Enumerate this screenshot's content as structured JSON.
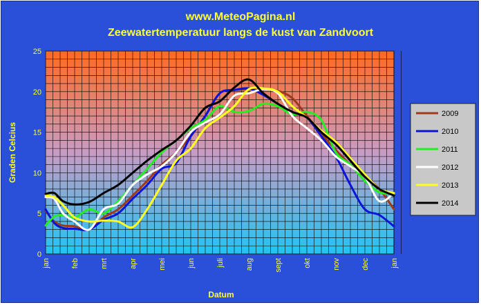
{
  "title": "www.MeteoPagina.nl",
  "subtitle": "Zeewatertemperatuur langs de kust van Zandvoort",
  "chart_data": {
    "type": "line",
    "title": "www.MeteoPagina.nl",
    "subtitle": "Zeewatertemperatuur langs de kust van Zandvoort",
    "xlabel": "Datum",
    "ylabel": "Graden Celcius",
    "ylim": [
      0,
      25
    ],
    "yticks": [
      0,
      5,
      10,
      15,
      20,
      25
    ],
    "xlim": [
      0,
      12
    ],
    "xticks": [
      "jan",
      "feb",
      "mrt",
      "apr",
      "mei",
      "jun",
      "juli",
      "aug",
      "sept",
      "okt",
      "nov",
      "dec",
      "jan"
    ],
    "grid": true,
    "legend_position": "right",
    "series": [
      {
        "name": "2009",
        "color": "#a0381a",
        "x": [
          0,
          0.3,
          0.6,
          1,
          1.5,
          2,
          2.5,
          3,
          3.5,
          4,
          4.5,
          5,
          5.5,
          6,
          6.5,
          7,
          7.5,
          8,
          8.5,
          9,
          9.5,
          10,
          10.5,
          11,
          11.5,
          12
        ],
        "y": [
          5.3,
          4.0,
          3.5,
          3.4,
          3.0,
          4.5,
          5.5,
          7.2,
          9.0,
          11.0,
          12.5,
          14.5,
          17.0,
          19.8,
          20.2,
          20.3,
          20.4,
          20.1,
          19.2,
          17.0,
          14.8,
          12.8,
          11.0,
          9.5,
          8.0,
          5.5
        ]
      },
      {
        "name": "2010",
        "color": "#0a14d8",
        "x": [
          0,
          0.3,
          0.6,
          1,
          1.5,
          2,
          2.5,
          3,
          3.5,
          4,
          4.5,
          5,
          5.5,
          6,
          6.5,
          7,
          7.5,
          8,
          8.5,
          9,
          9.5,
          10,
          10.5,
          11,
          11.5,
          12
        ],
        "y": [
          5.5,
          3.8,
          3.2,
          3.1,
          3.0,
          4.2,
          5.0,
          6.8,
          8.5,
          10.5,
          11.2,
          14.5,
          17.0,
          19.8,
          20.2,
          20.4,
          19.6,
          18.5,
          17.5,
          16.8,
          14.5,
          12.0,
          8.5,
          5.5,
          4.8,
          3.4
        ]
      },
      {
        "name": "2011",
        "color": "#22ee22",
        "x": [
          0,
          0.3,
          0.6,
          1,
          1.5,
          2,
          2.5,
          3,
          3.5,
          4,
          4.5,
          5,
          5.5,
          6,
          6.5,
          7,
          7.5,
          8,
          8.5,
          9,
          9.5,
          10,
          10.5,
          11,
          11.5,
          12
        ],
        "y": [
          3.5,
          4.6,
          4.8,
          4.5,
          5.5,
          5.0,
          6.5,
          8.5,
          10.5,
          12.5,
          14.0,
          15.5,
          16.5,
          18.2,
          17.5,
          17.6,
          18.5,
          18.2,
          17.2,
          17.5,
          16.5,
          12.5,
          11.0,
          9.0,
          7.6,
          7.4
        ]
      },
      {
        "name": "2012",
        "color": "#ffffff",
        "x": [
          0,
          0.3,
          0.6,
          1,
          1.5,
          2,
          2.5,
          3,
          3.5,
          4,
          4.5,
          5,
          5.5,
          6,
          6.5,
          7,
          7.5,
          8,
          8.5,
          9,
          9.5,
          10,
          10.5,
          11,
          11.5,
          12
        ],
        "y": [
          7.0,
          6.8,
          5.0,
          4.0,
          3.0,
          5.5,
          6.2,
          8.5,
          9.8,
          10.8,
          12.5,
          15.0,
          16.2,
          17.2,
          19.5,
          19.8,
          20.3,
          19.8,
          17.0,
          15.5,
          14.0,
          12.0,
          10.8,
          9.5,
          6.5,
          7.5
        ]
      },
      {
        "name": "2013",
        "color": "#ffff22",
        "x": [
          0,
          0.3,
          0.6,
          1,
          1.5,
          2,
          2.5,
          3,
          3.5,
          4,
          4.5,
          5,
          5.5,
          6,
          6.5,
          7,
          7.5,
          8,
          8.5,
          9,
          9.5,
          10,
          10.5,
          11,
          11.5,
          12
        ],
        "y": [
          7.2,
          7.0,
          6.0,
          4.5,
          4.0,
          4.1,
          4.0,
          3.3,
          5.5,
          8.5,
          11.5,
          13.0,
          15.5,
          16.8,
          18.2,
          20.3,
          20.4,
          20.0,
          18.2,
          16.8,
          15.2,
          13.8,
          11.8,
          9.8,
          8.0,
          7.5
        ]
      },
      {
        "name": "2014",
        "color": "#000000",
        "x": [
          0,
          0.3,
          0.6,
          1,
          1.5,
          2,
          2.5,
          3,
          3.5,
          4,
          4.5,
          5,
          5.5,
          6,
          6.5,
          7,
          7.5,
          8,
          8.5,
          9,
          9.5,
          10,
          10.5,
          11,
          11.5,
          12
        ],
        "y": [
          7.4,
          7.5,
          6.5,
          6.1,
          6.4,
          7.5,
          8.5,
          10.0,
          11.5,
          12.8,
          14.0,
          15.8,
          18.0,
          18.8,
          20.5,
          21.5,
          19.8,
          18.5,
          17.5,
          16.8,
          15.0,
          13.5,
          11.5,
          9.5,
          8.0,
          7.2
        ]
      }
    ]
  }
}
